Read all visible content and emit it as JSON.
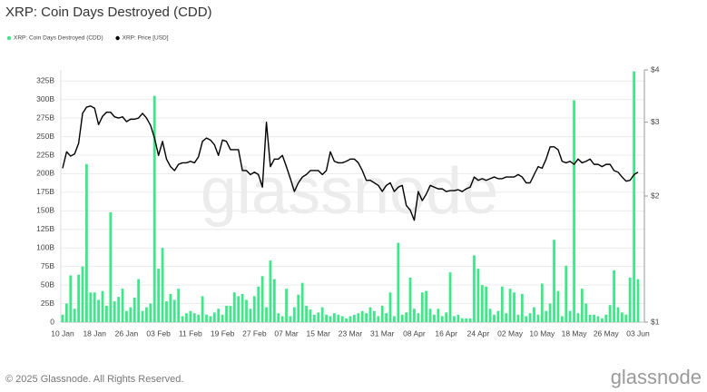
{
  "chart_data": {
    "type": "combo",
    "title": "XRP: Coin Days Destroyed (CDD)",
    "x": [
      "10 Jan",
      "11 Jan",
      "12 Jan",
      "13 Jan",
      "14 Jan",
      "15 Jan",
      "16 Jan",
      "17 Jan",
      "18 Jan",
      "19 Jan",
      "20 Jan",
      "21 Jan",
      "22 Jan",
      "23 Jan",
      "24 Jan",
      "25 Jan",
      "26 Jan",
      "27 Jan",
      "28 Jan",
      "29 Jan",
      "30 Jan",
      "31 Jan",
      "01 Feb",
      "02 Feb",
      "03 Feb",
      "04 Feb",
      "05 Feb",
      "06 Feb",
      "07 Feb",
      "08 Feb",
      "09 Feb",
      "10 Feb",
      "11 Feb",
      "12 Feb",
      "13 Feb",
      "14 Feb",
      "15 Feb",
      "16 Feb",
      "17 Feb",
      "18 Feb",
      "19 Feb",
      "20 Feb",
      "21 Feb",
      "22 Feb",
      "23 Feb",
      "24 Feb",
      "25 Feb",
      "26 Feb",
      "27 Feb",
      "28 Feb",
      "01 Mar",
      "02 Mar",
      "03 Mar",
      "04 Mar",
      "05 Mar",
      "06 Mar",
      "07 Mar",
      "08 Mar",
      "09 Mar",
      "10 Mar",
      "11 Mar",
      "12 Mar",
      "13 Mar",
      "14 Mar",
      "15 Mar",
      "16 Mar",
      "17 Mar",
      "18 Mar",
      "19 Mar",
      "20 Mar",
      "21 Mar",
      "22 Mar",
      "23 Mar",
      "24 Mar",
      "25 Mar",
      "26 Mar",
      "27 Mar",
      "28 Mar",
      "29 Mar",
      "30 Mar",
      "31 Mar",
      "01 Apr",
      "02 Apr",
      "03 Apr",
      "04 Apr",
      "05 Apr",
      "06 Apr",
      "07 Apr",
      "08 Apr",
      "09 Apr",
      "10 Apr",
      "11 Apr",
      "12 Apr",
      "13 Apr",
      "14 Apr",
      "15 Apr",
      "16 Apr",
      "17 Apr",
      "18 Apr",
      "19 Apr",
      "20 Apr",
      "21 Apr",
      "22 Apr",
      "23 Apr",
      "24 Apr",
      "25 Apr",
      "26 Apr",
      "27 Apr",
      "28 Apr",
      "29 Apr",
      "30 Apr",
      "01 May",
      "02 May",
      "03 May",
      "04 May",
      "05 May",
      "06 May",
      "07 May",
      "08 May",
      "09 May",
      "10 May",
      "11 May",
      "12 May",
      "13 May",
      "14 May",
      "15 May",
      "16 May",
      "17 May",
      "18 May",
      "19 May",
      "20 May",
      "21 May",
      "22 May",
      "23 May",
      "24 May",
      "25 May",
      "26 May",
      "27 May",
      "28 May",
      "29 May",
      "30 May",
      "31 May",
      "01 Jun",
      "02 Jun",
      "03 Jun"
    ],
    "series": [
      {
        "name": "XRP: Coin Days Destroyed (CDD)",
        "type": "bar",
        "axis": "y",
        "color": "#3ee889",
        "values": [
          10,
          25,
          63,
          18,
          64,
          75,
          213,
          40,
          40,
          30,
          42,
          22,
          148,
          28,
          34,
          45,
          15,
          20,
          33,
          58,
          15,
          20,
          25,
          305,
          72,
          100,
          28,
          38,
          30,
          45,
          8,
          12,
          15,
          12,
          10,
          35,
          10,
          8,
          13,
          18,
          10,
          22,
          22,
          40,
          35,
          38,
          30,
          18,
          35,
          48,
          62,
          20,
          83,
          58,
          12,
          8,
          45,
          8,
          20,
          37,
          53,
          22,
          17,
          10,
          13,
          20,
          10,
          8,
          12,
          10,
          8,
          5,
          8,
          10,
          12,
          15,
          12,
          20,
          15,
          8,
          22,
          12,
          40,
          8,
          107,
          10,
          13,
          60,
          18,
          12,
          40,
          42,
          18,
          10,
          18,
          8,
          13,
          67,
          8,
          10,
          5,
          5,
          5,
          90,
          72,
          50,
          48,
          18,
          10,
          15,
          48,
          12,
          45,
          40,
          10,
          38,
          8,
          12,
          20,
          10,
          52,
          15,
          25,
          111,
          42,
          8,
          76,
          15,
          299,
          12,
          45,
          25,
          10,
          10,
          8,
          5,
          10,
          23,
          70,
          20,
          13,
          10,
          60,
          338,
          58
        ]
      },
      {
        "name": "XRP: Price [USD]",
        "type": "line",
        "axis": "y2",
        "color": "#000000",
        "values": [
          2.33,
          2.55,
          2.49,
          2.52,
          2.67,
          3.15,
          3.26,
          3.28,
          3.24,
          2.96,
          3.1,
          3.17,
          3.17,
          3.09,
          3.07,
          3.09,
          3.01,
          3.05,
          3.05,
          3.07,
          3.15,
          3.07,
          2.95,
          2.75,
          2.5,
          2.7,
          2.45,
          2.35,
          2.3,
          2.38,
          2.4,
          2.4,
          2.42,
          2.4,
          2.48,
          2.7,
          2.75,
          2.72,
          2.65,
          2.5,
          2.72,
          2.7,
          2.58,
          2.58,
          2.58,
          2.3,
          2.3,
          2.25,
          2.28,
          2.25,
          2.1,
          3.0,
          2.35,
          2.45,
          2.45,
          2.5,
          2.35,
          2.2,
          2.05,
          2.15,
          2.22,
          2.25,
          2.3,
          2.3,
          2.3,
          2.25,
          2.3,
          2.55,
          2.42,
          2.4,
          2.4,
          2.42,
          2.45,
          2.45,
          2.4,
          2.3,
          2.18,
          2.18,
          2.15,
          2.12,
          2.05,
          2.12,
          2.15,
          2.05,
          2.1,
          2.12,
          1.9,
          1.85,
          1.75,
          2.05,
          1.95,
          2.02,
          2.12,
          2.1,
          2.08,
          2.08,
          2.05,
          2.06,
          2.06,
          2.07,
          2.05,
          2.08,
          2.1,
          2.22,
          2.18,
          2.2,
          2.18,
          2.2,
          2.22,
          2.2,
          2.2,
          2.22,
          2.22,
          2.22,
          2.25,
          2.22,
          2.15,
          2.15,
          2.25,
          2.35,
          2.33,
          2.45,
          2.62,
          2.62,
          2.58,
          2.42,
          2.4,
          2.42,
          2.38,
          2.45,
          2.4,
          2.42,
          2.45,
          2.38,
          2.38,
          2.35,
          2.38,
          2.38,
          2.3,
          2.28,
          2.22,
          2.17,
          2.18,
          2.25,
          2.28
        ]
      }
    ],
    "ylim": [
      0,
      340
    ],
    "yticks": [
      0,
      {
        "value": 25,
        "label": "25B"
      },
      {
        "value": 50,
        "label": "50B"
      },
      {
        "value": 75,
        "label": "75B"
      },
      {
        "value": 100,
        "label": "100B"
      },
      {
        "value": 125,
        "label": "125B"
      },
      {
        "value": 150,
        "label": "150B"
      },
      {
        "value": 175,
        "label": "175B"
      },
      {
        "value": 200,
        "label": "200B"
      },
      {
        "value": 225,
        "label": "225B"
      },
      {
        "value": 250,
        "label": "250B"
      },
      {
        "value": 275,
        "label": "275B"
      },
      {
        "value": 300,
        "label": "300B"
      },
      {
        "value": 325,
        "label": "325B"
      }
    ],
    "y2lim": [
      1,
      4
    ],
    "y2scale": "log",
    "y2ticks": [
      {
        "value": 1,
        "label": "$1"
      },
      {
        "value": 2,
        "label": "$2"
      },
      {
        "value": 3,
        "label": "$3"
      },
      {
        "value": 4,
        "label": "$4"
      }
    ],
    "grid": true,
    "legend": "top-left",
    "watermark": "glassnode"
  },
  "footer": {
    "copyright": "© 2025 Glassnode. All Rights Reserved.",
    "logo": "glassnode"
  }
}
